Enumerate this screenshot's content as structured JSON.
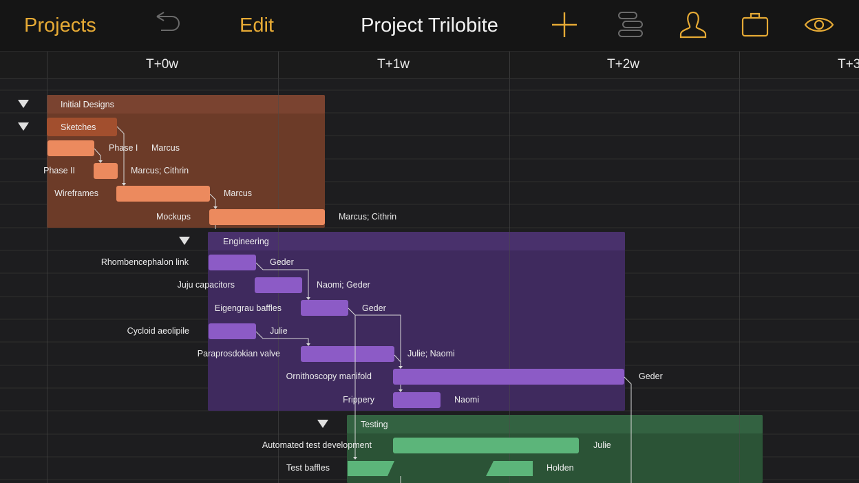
{
  "toolbar": {
    "projects_label": "Projects",
    "edit_label": "Edit",
    "title": "Project Trilobite",
    "icons": [
      "undo-icon",
      "add-icon",
      "outline-icon",
      "resources-icon",
      "briefcase-icon",
      "eye-icon"
    ]
  },
  "timeline": {
    "columns": [
      "T+0w",
      "T+1w",
      "T+2w",
      "T+3"
    ]
  },
  "colors": {
    "accent": "#e6aa35",
    "design_group": "#6c3b28",
    "design_task": "#ec8a5e",
    "engineering_group": "#3f2a5e",
    "engineering_task": "#8c5bc6",
    "testing_group": "#2f5a3a",
    "testing_task": "#5cb57a"
  },
  "groups": {
    "initial_designs": "Initial Designs",
    "sketches": "Sketches",
    "engineering": "Engineering",
    "testing": "Testing"
  },
  "tasks": {
    "phase1": {
      "name": "Phase I",
      "resource": "Marcus"
    },
    "phase2": {
      "name": "Phase II",
      "resource": "Marcus; Cithrin"
    },
    "wireframes": {
      "name": "Wireframes",
      "resource": "Marcus"
    },
    "mockups": {
      "name": "Mockups",
      "resource": "Marcus; Cithrin"
    },
    "rhombencephalon": {
      "name": "Rhombencephalon link",
      "resource": "Geder"
    },
    "juju": {
      "name": "Juju capacitors",
      "resource": "Naomi; Geder"
    },
    "eigengrau": {
      "name": "Eigengrau baffles",
      "resource": "Geder"
    },
    "cycloid": {
      "name": "Cycloid aeolipile",
      "resource": "Julie"
    },
    "paraprosdokian": {
      "name": "Paraprosdokian valve",
      "resource": "Julie; Naomi"
    },
    "ornithoscopy": {
      "name": "Ornithoscopy manifold",
      "resource": "Geder"
    },
    "frippery": {
      "name": "Frippery",
      "resource": "Naomi"
    },
    "automated": {
      "name": "Automated test development",
      "resource": "Julie"
    },
    "testbaffles": {
      "name": "Test baffles",
      "resource": "Holden"
    }
  }
}
